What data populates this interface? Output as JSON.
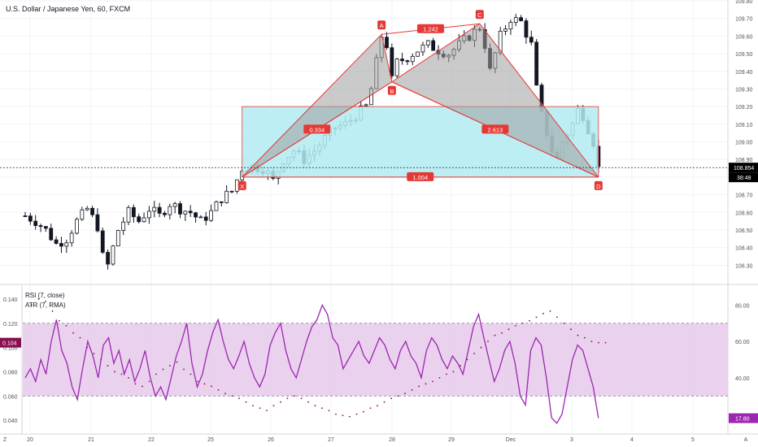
{
  "main_title": "U.S. Dollar / Japanese Yen, 60, FXCM",
  "colors": {
    "background": "#ffffff",
    "grid": "#f0f3fa",
    "candle": "#131722",
    "pattern_line": "#e53935",
    "pattern_fill": "#9e9e9e",
    "pattern_label_bg": "#e53935",
    "box_fill": "#b2ebf2",
    "box_border": "#e53935",
    "rsi_line": "#9c27b0",
    "rsi_band": "#e1bee7",
    "atr_dots": "#880e4f",
    "price_label_bg": "#000000",
    "axis_text": "#50535e"
  },
  "chart_data": [
    {
      "type": "candlestick",
      "title": "U.S. Dollar / Japanese Yen, 60, FXCM",
      "ylim": [
        108.2,
        109.8
      ],
      "y_ticks": [
        "108.30",
        "108.40",
        "108.50",
        "108.60",
        "108.70",
        "108.80",
        "108.90",
        "109.00",
        "109.10",
        "109.20",
        "109.30",
        "109.40",
        "109.50",
        "109.60",
        "109.70",
        "109.80"
      ],
      "x_ticks": [
        "20",
        "21",
        "22",
        "25",
        "26",
        "27",
        "28",
        "29",
        "Dec",
        "3",
        "4",
        "5",
        "A"
      ],
      "last_price": "108.854",
      "countdown": "38:48",
      "close_path": [
        [
          0,
          108.58
        ],
        [
          2,
          108.55
        ],
        [
          4,
          108.5
        ],
        [
          6,
          108.42
        ],
        [
          8,
          108.45
        ],
        [
          10,
          108.55
        ],
        [
          12,
          108.62
        ],
        [
          14,
          108.52
        ],
        [
          15,
          108.35
        ],
        [
          16,
          108.3
        ],
        [
          18,
          108.5
        ],
        [
          20,
          108.6
        ],
        [
          22,
          108.55
        ],
        [
          24,
          108.62
        ],
        [
          26,
          108.58
        ],
        [
          28,
          108.65
        ],
        [
          30,
          108.62
        ],
        [
          32,
          108.6
        ],
        [
          34,
          108.55
        ],
        [
          36,
          108.6
        ],
        [
          38,
          108.68
        ],
        [
          40,
          108.72
        ],
        [
          42,
          108.85
        ],
        [
          44,
          108.86
        ],
        [
          46,
          108.85
        ],
        [
          47,
          108.82
        ],
        [
          48,
          108.78
        ],
        [
          50,
          108.9
        ],
        [
          52,
          108.95
        ],
        [
          54,
          108.9
        ],
        [
          56,
          108.95
        ],
        [
          58,
          109.02
        ],
        [
          60,
          109.08
        ],
        [
          62,
          109.1
        ],
        [
          64,
          109.15
        ],
        [
          66,
          109.2
        ],
        [
          67,
          109.3
        ],
        [
          68,
          109.45
        ],
        [
          69,
          109.6
        ],
        [
          70,
          109.55
        ],
        [
          71,
          109.35
        ],
        [
          72,
          109.45
        ],
        [
          74,
          109.48
        ],
        [
          76,
          109.52
        ],
        [
          78,
          109.55
        ],
        [
          80,
          109.52
        ],
        [
          82,
          109.5
        ],
        [
          84,
          109.55
        ],
        [
          86,
          109.6
        ],
        [
          88,
          109.65
        ],
        [
          89,
          109.55
        ],
        [
          90,
          109.4
        ],
        [
          91,
          109.5
        ],
        [
          92,
          109.6
        ],
        [
          94,
          109.7
        ],
        [
          96,
          109.68
        ],
        [
          98,
          109.55
        ],
        [
          99,
          109.3
        ],
        [
          100,
          109.15
        ],
        [
          102,
          108.95
        ],
        [
          103,
          108.9
        ],
        [
          104,
          109.0
        ],
        [
          106,
          109.1
        ],
        [
          107,
          109.18
        ],
        [
          108,
          109.15
        ],
        [
          110,
          109.0
        ],
        [
          111,
          108.85
        ]
      ],
      "harmonic_pattern": {
        "points": [
          {
            "label": "X",
            "i": 42,
            "price": 108.8
          },
          {
            "label": "A",
            "i": 69,
            "price": 109.61
          },
          {
            "label": "B",
            "i": 71,
            "price": 109.34
          },
          {
            "label": "C",
            "i": 88,
            "price": 109.67
          },
          {
            "label": "D",
            "i": 111,
            "price": 108.8
          }
        ],
        "ratios": [
          {
            "text": "0.334",
            "between": "X-B"
          },
          {
            "text": "1.242",
            "between": "A-C"
          },
          {
            "text": "2.613",
            "between": "B-D"
          },
          {
            "text": "1.004",
            "between": "X-D"
          }
        ],
        "box": {
          "top": 109.2,
          "bottom": 108.8,
          "from_i": 42,
          "to_i": 111
        }
      }
    },
    {
      "type": "line",
      "title": "RSI (7, close)",
      "ylim": [
        10,
        90
      ],
      "y_ticks": [
        "40.00",
        "60.00",
        "80.00"
      ],
      "bands": [
        30,
        70
      ],
      "band_labels": [
        "17.80"
      ],
      "series": [
        {
          "name": "RSI (7, close)",
          "values": [
            40,
            45,
            38,
            50,
            42,
            60,
            72,
            55,
            48,
            35,
            28,
            45,
            60,
            52,
            40,
            58,
            62,
            48,
            55,
            42,
            50,
            38,
            45,
            55,
            40,
            30,
            35,
            28,
            40,
            52,
            60,
            70,
            48,
            35,
            42,
            55,
            65,
            72,
            60,
            50,
            45,
            52,
            60,
            48,
            40,
            35,
            42,
            58,
            65,
            70,
            55,
            45,
            40,
            50,
            60,
            68,
            72,
            80,
            75,
            62,
            58,
            45,
            50,
            55,
            60,
            52,
            48,
            55,
            62,
            58,
            50,
            45,
            55,
            60,
            52,
            48,
            40,
            55,
            62,
            58,
            50,
            45,
            52,
            48,
            42,
            55,
            68,
            75,
            62,
            50,
            38,
            45,
            55,
            60,
            48,
            30,
            25,
            55,
            62,
            58,
            40,
            18,
            15,
            20,
            35,
            50,
            58,
            55,
            45,
            35,
            17.8
          ]
        }
      ]
    },
    {
      "type": "scatter",
      "title": "ATR (7, RMA)",
      "ylim": [
        0.03,
        0.15
      ],
      "y_ticks": [
        "0.040",
        "0.060",
        "0.080",
        "0.100",
        "0.120",
        "0.140"
      ],
      "current_value": "0.104",
      "series": [
        {
          "name": "ATR (7, RMA)",
          "values": [
            0.135,
            0.14,
            0.138,
            0.13,
            0.122,
            0.118,
            0.112,
            0.108,
            0.1,
            0.095,
            0.09,
            0.085,
            0.08,
            0.078,
            0.075,
            0.07,
            0.068,
            0.072,
            0.078,
            0.082,
            0.085,
            0.088,
            0.082,
            0.078,
            0.072,
            0.07,
            0.068,
            0.065,
            0.062,
            0.06,
            0.058,
            0.055,
            0.052,
            0.05,
            0.048,
            0.052,
            0.055,
            0.058,
            0.06,
            0.058,
            0.055,
            0.052,
            0.05,
            0.048,
            0.045,
            0.044,
            0.043,
            0.045,
            0.047,
            0.05,
            0.052,
            0.055,
            0.058,
            0.06,
            0.062,
            0.065,
            0.068,
            0.07,
            0.072,
            0.075,
            0.078,
            0.08,
            0.085,
            0.09,
            0.095,
            0.1,
            0.105,
            0.11,
            0.112,
            0.115,
            0.118,
            0.12,
            0.122,
            0.125,
            0.128,
            0.13,
            0.125,
            0.12,
            0.115,
            0.11,
            0.108,
            0.105,
            0.104,
            0.104
          ]
        }
      ]
    }
  ],
  "footer": {
    "left_axis_mark": "Z"
  }
}
